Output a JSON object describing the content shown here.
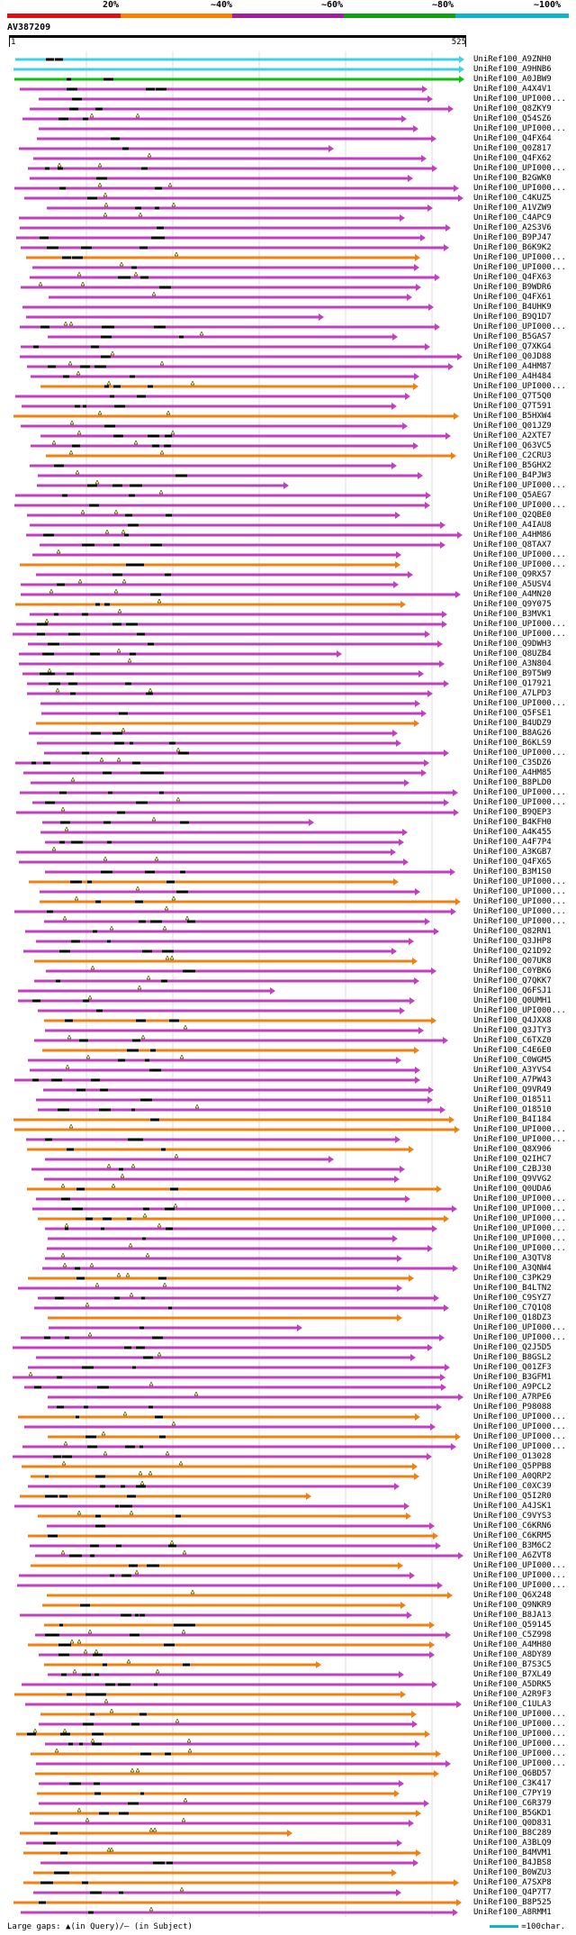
{
  "scale": {
    "labels": [
      "20%",
      "~40%",
      "~60%",
      "~80%",
      "~100%"
    ],
    "colors": [
      "#e01010",
      "#ff8000",
      "#a020a0",
      "#10a010",
      "#10b4c8"
    ]
  },
  "query": {
    "id": "AV387209",
    "start": "1",
    "end": "525"
  },
  "colors": {
    "cyan": "#40d0e8",
    "green": "#10c010",
    "magenta": "#c040c0",
    "orange": "#f08010",
    "gap": "#000000",
    "insert": "#ffff60"
  },
  "hits": [
    {
      "id": "UniRef100_A9ZNH0",
      "c": "cyan"
    },
    {
      "id": "UniRef100_A9HNB6",
      "c": "cyan"
    },
    {
      "id": "UniRef100_A0JBW9",
      "c": "green"
    },
    {
      "id": "UniRef100_A4X4V1",
      "c": "magenta"
    },
    {
      "id": "UniRef100_UPI000...",
      "c": "magenta"
    },
    {
      "id": "UniRef100_Q8ZKY9",
      "c": "magenta"
    },
    {
      "id": "UniRef100_Q54SZ6",
      "c": "magenta"
    },
    {
      "id": "UniRef100_UPI000...",
      "c": "magenta"
    },
    {
      "id": "UniRef100_Q4FX64",
      "c": "magenta"
    },
    {
      "id": "UniRef100_Q0Z817",
      "c": "magenta"
    },
    {
      "id": "UniRef100_Q4FX62",
      "c": "magenta"
    },
    {
      "id": "UniRef100_UPI000...",
      "c": "magenta"
    },
    {
      "id": "UniRef100_B2GWK0",
      "c": "magenta"
    },
    {
      "id": "UniRef100_UPI000...",
      "c": "magenta"
    },
    {
      "id": "UniRef100_C4KUZ5",
      "c": "magenta"
    },
    {
      "id": "UniRef100_A1VZW9",
      "c": "magenta"
    },
    {
      "id": "UniRef100_C4APC9",
      "c": "magenta"
    },
    {
      "id": "UniRef100_A2S3V6",
      "c": "magenta"
    },
    {
      "id": "UniRef100_B9PJ47",
      "c": "magenta"
    },
    {
      "id": "UniRef100_B6K9K2",
      "c": "magenta"
    },
    {
      "id": "UniRef100_UPI000...",
      "c": "orange"
    },
    {
      "id": "UniRef100_UPI000...",
      "c": "magenta"
    },
    {
      "id": "UniRef100_Q4FX63",
      "c": "magenta"
    },
    {
      "id": "UniRef100_B9WDR6",
      "c": "magenta"
    },
    {
      "id": "UniRef100_Q4FX61",
      "c": "magenta"
    },
    {
      "id": "UniRef100_B4UHK9",
      "c": "magenta"
    },
    {
      "id": "UniRef100_B9Q1D7",
      "c": "magenta"
    },
    {
      "id": "UniRef100_UPI000...",
      "c": "magenta"
    },
    {
      "id": "UniRef100_B5GAS7",
      "c": "magenta"
    },
    {
      "id": "UniRef100_Q7XKG4",
      "c": "magenta"
    },
    {
      "id": "UniRef100_Q0JD88",
      "c": "magenta"
    },
    {
      "id": "UniRef100_A4HM87",
      "c": "magenta"
    },
    {
      "id": "UniRef100_A4H484",
      "c": "magenta"
    },
    {
      "id": "UniRef100_UPI000...",
      "c": "orange"
    },
    {
      "id": "UniRef100_Q7T5Q0",
      "c": "magenta"
    },
    {
      "id": "UniRef100_Q7T591",
      "c": "magenta"
    },
    {
      "id": "UniRef100_B5HXW4",
      "c": "orange"
    },
    {
      "id": "UniRef100_Q01JZ9",
      "c": "magenta"
    },
    {
      "id": "UniRef100_A2XTE7",
      "c": "magenta"
    },
    {
      "id": "UniRef100_Q63VC5",
      "c": "magenta"
    },
    {
      "id": "UniRef100_C2CRU3",
      "c": "orange"
    },
    {
      "id": "UniRef100_B5GHX2",
      "c": "magenta"
    },
    {
      "id": "UniRef100_B4PJW3",
      "c": "magenta"
    },
    {
      "id": "UniRef100_UPI000...",
      "c": "magenta"
    },
    {
      "id": "UniRef100_Q5AEG7",
      "c": "magenta"
    },
    {
      "id": "UniRef100_UPI000...",
      "c": "magenta"
    },
    {
      "id": "UniRef100_Q2QBE0",
      "c": "magenta"
    },
    {
      "id": "UniRef100_A4IAU8",
      "c": "magenta"
    },
    {
      "id": "UniRef100_A4HM86",
      "c": "magenta"
    },
    {
      "id": "UniRef100_Q8TAX7",
      "c": "magenta"
    },
    {
      "id": "UniRef100_UPI000...",
      "c": "magenta"
    },
    {
      "id": "UniRef100_UPI000...",
      "c": "orange"
    },
    {
      "id": "UniRef100_Q9RX57",
      "c": "magenta"
    },
    {
      "id": "UniRef100_A5USV4",
      "c": "magenta"
    },
    {
      "id": "UniRef100_A4MN20",
      "c": "magenta"
    },
    {
      "id": "UniRef100_Q9Y075",
      "c": "orange"
    },
    {
      "id": "UniRef100_B3MVK1",
      "c": "magenta"
    },
    {
      "id": "UniRef100_UPI000...",
      "c": "magenta"
    },
    {
      "id": "UniRef100_UPI000...",
      "c": "magenta"
    },
    {
      "id": "UniRef100_Q9DWH3",
      "c": "magenta"
    },
    {
      "id": "UniRef100_Q8UZB4",
      "c": "magenta"
    },
    {
      "id": "UniRef100_A3N804",
      "c": "magenta"
    },
    {
      "id": "UniRef100_B9T5W9",
      "c": "magenta"
    },
    {
      "id": "UniRef100_Q17921",
      "c": "magenta"
    },
    {
      "id": "UniRef100_A7LPD3",
      "c": "magenta"
    },
    {
      "id": "UniRef100_UPI000...",
      "c": "magenta"
    },
    {
      "id": "UniRef100_Q5FSE1",
      "c": "magenta"
    },
    {
      "id": "UniRef100_B4UDZ9",
      "c": "orange"
    },
    {
      "id": "UniRef100_B8AG26",
      "c": "magenta"
    },
    {
      "id": "UniRef100_B6KLS9",
      "c": "magenta"
    },
    {
      "id": "UniRef100_UPI000...",
      "c": "magenta"
    },
    {
      "id": "UniRef100_C3SDZ6",
      "c": "magenta"
    },
    {
      "id": "UniRef100_A4HM85",
      "c": "magenta"
    },
    {
      "id": "UniRef100_B8PLD0",
      "c": "magenta"
    },
    {
      "id": "UniRef100_UPI000...",
      "c": "magenta"
    },
    {
      "id": "UniRef100_UPI000...",
      "c": "magenta"
    },
    {
      "id": "UniRef100_B9QEP3",
      "c": "magenta"
    },
    {
      "id": "UniRef100_B4KFH0",
      "c": "magenta"
    },
    {
      "id": "UniRef100_A4K455",
      "c": "magenta"
    },
    {
      "id": "UniRef100_A4F7P4",
      "c": "magenta"
    },
    {
      "id": "UniRef100_A3KGB7",
      "c": "magenta"
    },
    {
      "id": "UniRef100_Q4FX65",
      "c": "magenta"
    },
    {
      "id": "UniRef100_B3M1S0",
      "c": "magenta"
    },
    {
      "id": "UniRef100_UPI000...",
      "c": "orange"
    },
    {
      "id": "UniRef100_UPI000...",
      "c": "magenta"
    },
    {
      "id": "UniRef100_UPI000...",
      "c": "orange"
    },
    {
      "id": "UniRef100_UPI000...",
      "c": "magenta"
    },
    {
      "id": "UniRef100_UPI000...",
      "c": "magenta"
    },
    {
      "id": "UniRef100_Q82RN1",
      "c": "magenta"
    },
    {
      "id": "UniRef100_Q3JHP8",
      "c": "magenta"
    },
    {
      "id": "UniRef100_Q21D92",
      "c": "magenta"
    },
    {
      "id": "UniRef100_Q07UK8",
      "c": "orange"
    },
    {
      "id": "UniRef100_C0YBK6",
      "c": "magenta"
    },
    {
      "id": "UniRef100_Q7QKK7",
      "c": "magenta"
    },
    {
      "id": "UniRef100_Q6FSJ1",
      "c": "magenta"
    },
    {
      "id": "UniRef100_Q0UMH1",
      "c": "magenta"
    },
    {
      "id": "UniRef100_UPI000...",
      "c": "magenta"
    },
    {
      "id": "UniRef100_Q4JXX8",
      "c": "orange"
    },
    {
      "id": "UniRef100_Q3JTY3",
      "c": "magenta"
    },
    {
      "id": "UniRef100_C6TXZ0",
      "c": "magenta"
    },
    {
      "id": "UniRef100_C4E6E0",
      "c": "orange"
    },
    {
      "id": "UniRef100_C0WGM5",
      "c": "magenta"
    },
    {
      "id": "UniRef100_A3YVS4",
      "c": "magenta"
    },
    {
      "id": "UniRef100_A7PW43",
      "c": "magenta"
    },
    {
      "id": "UniRef100_Q9VR49",
      "c": "magenta"
    },
    {
      "id": "UniRef100_O18511",
      "c": "magenta"
    },
    {
      "id": "UniRef100_O18510",
      "c": "magenta"
    },
    {
      "id": "UniRef100_B4I184",
      "c": "orange"
    },
    {
      "id": "UniRef100_UPI000...",
      "c": "orange"
    },
    {
      "id": "UniRef100_UPI000...",
      "c": "magenta"
    },
    {
      "id": "UniRef100_Q8X906",
      "c": "orange"
    },
    {
      "id": "UniRef100_Q2IHC7",
      "c": "magenta"
    },
    {
      "id": "UniRef100_C2BJ30",
      "c": "magenta"
    },
    {
      "id": "UniRef100_Q9VVG2",
      "c": "magenta"
    },
    {
      "id": "UniRef100_Q0UDA6",
      "c": "orange"
    },
    {
      "id": "UniRef100_UPI000...",
      "c": "magenta"
    },
    {
      "id": "UniRef100_UPI000...",
      "c": "magenta"
    },
    {
      "id": "UniRef100_UPI000...",
      "c": "orange"
    },
    {
      "id": "UniRef100_UPI000...",
      "c": "magenta"
    },
    {
      "id": "UniRef100_UPI000...",
      "c": "magenta"
    },
    {
      "id": "UniRef100_UPI000...",
      "c": "magenta"
    },
    {
      "id": "UniRef100_A3QTV8",
      "c": "magenta"
    },
    {
      "id": "UniRef100_A3QNW4",
      "c": "magenta"
    },
    {
      "id": "UniRef100_C3PK29",
      "c": "orange"
    },
    {
      "id": "UniRef100_B4LTN2",
      "c": "magenta"
    },
    {
      "id": "UniRef100_C9SYZ7",
      "c": "magenta"
    },
    {
      "id": "UniRef100_C7Q1Q8",
      "c": "magenta"
    },
    {
      "id": "UniRef100_Q18DZ3",
      "c": "orange"
    },
    {
      "id": "UniRef100_UPI000...",
      "c": "magenta"
    },
    {
      "id": "UniRef100_UPI000...",
      "c": "magenta"
    },
    {
      "id": "UniRef100_Q2J5D5",
      "c": "magenta"
    },
    {
      "id": "UniRef100_B8GSL2",
      "c": "magenta"
    },
    {
      "id": "UniRef100_Q01ZF3",
      "c": "magenta"
    },
    {
      "id": "UniRef100_B3GFM1",
      "c": "magenta"
    },
    {
      "id": "UniRef100_A9PCL2",
      "c": "magenta"
    },
    {
      "id": "UniRef100_A7RPE6",
      "c": "magenta"
    },
    {
      "id": "UniRef100_P98088",
      "c": "magenta"
    },
    {
      "id": "UniRef100_UPI000...",
      "c": "orange"
    },
    {
      "id": "UniRef100_UPI000...",
      "c": "magenta"
    },
    {
      "id": "UniRef100_UPI000...",
      "c": "orange"
    },
    {
      "id": "UniRef100_UPI000...",
      "c": "magenta"
    },
    {
      "id": "UniRef100_O13028",
      "c": "magenta"
    },
    {
      "id": "UniRef100_Q5PPB8",
      "c": "orange"
    },
    {
      "id": "UniRef100_A0QRP2",
      "c": "orange"
    },
    {
      "id": "UniRef100_C0XC39",
      "c": "magenta"
    },
    {
      "id": "UniRef100_Q5I2R0",
      "c": "orange"
    },
    {
      "id": "UniRef100_A4JSK1",
      "c": "magenta"
    },
    {
      "id": "UniRef100_C9VYS3",
      "c": "orange"
    },
    {
      "id": "UniRef100_C6KRN6",
      "c": "magenta"
    },
    {
      "id": "UniRef100_C6KRM5",
      "c": "orange"
    },
    {
      "id": "UniRef100_B3M6C2",
      "c": "magenta"
    },
    {
      "id": "UniRef100_A6ZVT8",
      "c": "magenta"
    },
    {
      "id": "UniRef100_UPI000...",
      "c": "orange"
    },
    {
      "id": "UniRef100_UPI000...",
      "c": "magenta"
    },
    {
      "id": "UniRef100_UPI000...",
      "c": "magenta"
    },
    {
      "id": "UniRef100_Q6X248",
      "c": "orange"
    },
    {
      "id": "UniRef100_Q9NKR9",
      "c": "orange"
    },
    {
      "id": "UniRef100_B8JA13",
      "c": "magenta"
    },
    {
      "id": "UniRef100_Q59145",
      "c": "orange"
    },
    {
      "id": "UniRef100_C5Z998",
      "c": "magenta"
    },
    {
      "id": "UniRef100_A4MH80",
      "c": "orange"
    },
    {
      "id": "UniRef100_A8DY89",
      "c": "magenta"
    },
    {
      "id": "UniRef100_B7S3C5",
      "c": "orange"
    },
    {
      "id": "UniRef100_B7XL49",
      "c": "magenta"
    },
    {
      "id": "UniRef100_A5DRK5",
      "c": "magenta"
    },
    {
      "id": "UniRef100_A2R9F3",
      "c": "orange"
    },
    {
      "id": "UniRef100_C1ULA3",
      "c": "magenta"
    },
    {
      "id": "UniRef100_UPI000...",
      "c": "orange"
    },
    {
      "id": "UniRef100_UPI000...",
      "c": "magenta"
    },
    {
      "id": "UniRef100_UPI000...",
      "c": "orange"
    },
    {
      "id": "UniRef100_UPI000...",
      "c": "magenta"
    },
    {
      "id": "UniRef100_UPI000...",
      "c": "orange"
    },
    {
      "id": "UniRef100_UPI000...",
      "c": "magenta"
    },
    {
      "id": "UniRef100_Q6BD57",
      "c": "orange"
    },
    {
      "id": "UniRef100_C3K417",
      "c": "magenta"
    },
    {
      "id": "UniRef100_C7PY19",
      "c": "orange"
    },
    {
      "id": "UniRef100_C6R379",
      "c": "magenta"
    },
    {
      "id": "UniRef100_B5GKD1",
      "c": "orange"
    },
    {
      "id": "UniRef100_Q0D831",
      "c": "magenta"
    },
    {
      "id": "UniRef100_B8C289",
      "c": "orange"
    },
    {
      "id": "UniRef100_A3BLQ9",
      "c": "magenta"
    },
    {
      "id": "UniRef100_B4MVM1",
      "c": "orange"
    },
    {
      "id": "UniRef100_B4JBS8",
      "c": "magenta"
    },
    {
      "id": "UniRef100_B0WZU3",
      "c": "orange"
    },
    {
      "id": "UniRef100_A7SXP8",
      "c": "orange"
    },
    {
      "id": "UniRef100_Q4P7T7",
      "c": "magenta"
    },
    {
      "id": "UniRef100_B8P525",
      "c": "orange"
    },
    {
      "id": "UniRef100_A8RMM1",
      "c": "magenta"
    }
  ],
  "footer": {
    "gaps_text": "Large gaps: ▲(in Query)/– (in Subject)",
    "legend_text": "=100char."
  }
}
